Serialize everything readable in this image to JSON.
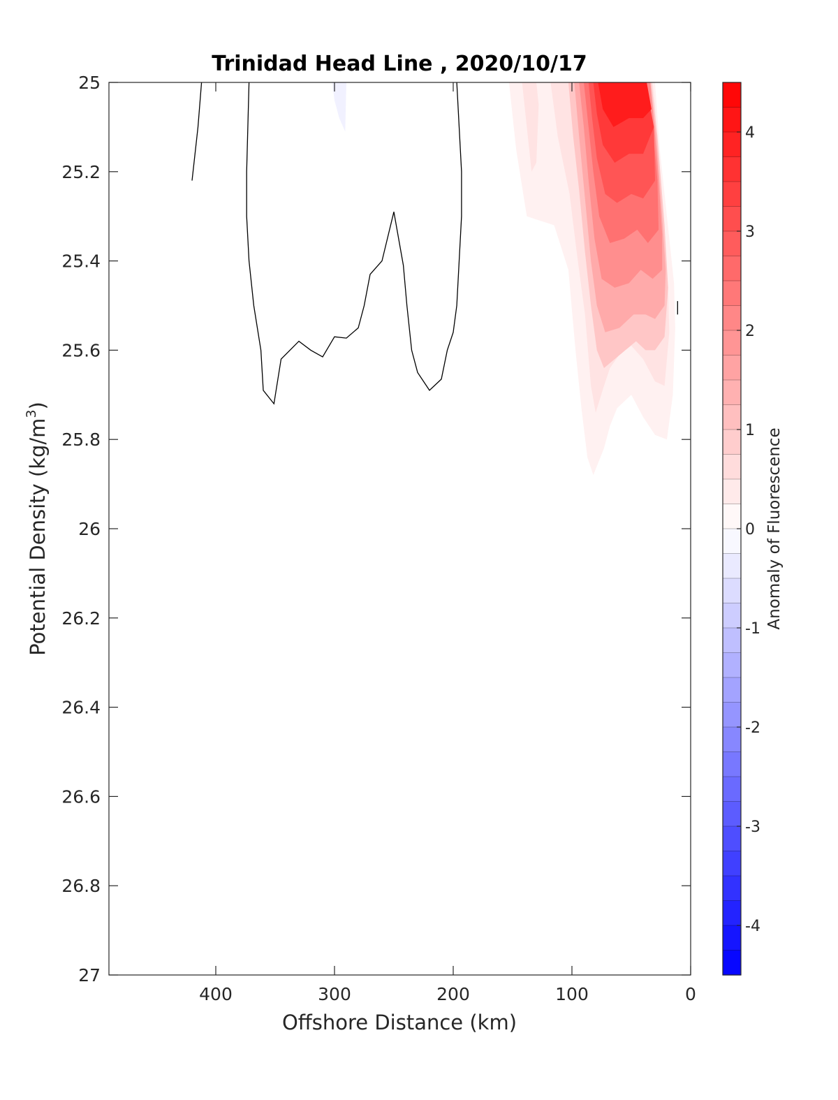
{
  "chart_data": {
    "type": "contour",
    "title": "Trinidad Head Line , 2020/10/17",
    "xlabel": "Offshore Distance (km)",
    "ylabel": "Potential Density (kg/m",
    "ylabel_sup": "3",
    "ylabel_close": ")",
    "xlim": [
      490,
      0
    ],
    "ylim": [
      25,
      27
    ],
    "x_ticks": [
      400,
      300,
      200,
      100,
      0
    ],
    "x_tick_labels": [
      "400",
      "300",
      "200",
      "100",
      "0"
    ],
    "y_ticks": [
      25,
      25.2,
      25.4,
      25.6,
      25.8,
      26,
      26.2,
      26.4,
      26.6,
      26.8,
      27
    ],
    "y_tick_labels": [
      "25",
      "25.2",
      "25.4",
      "25.6",
      "25.8",
      "26",
      "26.2",
      "26.4",
      "26.6",
      "26.8",
      "27"
    ],
    "colorbar": {
      "label": "Anomaly of Fluorescence",
      "range": [
        -4.5,
        4.5
      ],
      "ticks": [
        4,
        3,
        2,
        1,
        0,
        -1,
        -2,
        -3,
        -4
      ],
      "tick_labels": [
        "4",
        "3",
        "2",
        "1",
        "0",
        "-1",
        "-2",
        "-3",
        "-4"
      ],
      "level_step": 0.25,
      "colormap": "blue-white-red",
      "color_low": "#0000ff",
      "color_mid": "#ffffff",
      "color_high": "#ff0000"
    },
    "anomaly_fields": [
      {
        "level": 0.25,
        "points": [
          [
            153,
            25
          ],
          [
            147,
            25.15
          ],
          [
            138,
            25.3
          ],
          [
            115,
            25.32
          ],
          [
            103,
            25.42
          ],
          [
            97,
            25.6
          ],
          [
            92,
            25.73
          ],
          [
            87,
            25.84
          ],
          [
            82,
            25.88
          ],
          [
            73,
            25.82
          ],
          [
            68,
            25.77
          ],
          [
            62,
            25.73
          ],
          [
            50,
            25.7
          ],
          [
            40,
            25.75
          ],
          [
            30,
            25.79
          ],
          [
            20,
            25.8
          ],
          [
            15,
            25.7
          ],
          [
            13,
            25.55
          ],
          [
            14,
            25.45
          ],
          [
            18,
            25.35
          ],
          [
            22,
            25.25
          ],
          [
            26,
            25.15
          ],
          [
            30,
            25
          ],
          [
            153,
            25
          ]
        ]
      },
      {
        "level": 0.5,
        "points": [
          [
            118,
            25
          ],
          [
            112,
            25.12
          ],
          [
            102,
            25.25
          ],
          [
            96,
            25.38
          ],
          [
            89,
            25.52
          ],
          [
            84,
            25.68
          ],
          [
            80,
            25.74
          ],
          [
            73,
            25.68
          ],
          [
            68,
            25.64
          ],
          [
            60,
            25.61
          ],
          [
            50,
            25.59
          ],
          [
            40,
            25.62
          ],
          [
            30,
            25.67
          ],
          [
            22,
            25.68
          ],
          [
            18,
            25.56
          ],
          [
            19,
            25.46
          ],
          [
            22,
            25.35
          ],
          [
            26,
            25.2
          ],
          [
            30,
            25.05
          ],
          [
            32,
            25
          ],
          [
            118,
            25
          ]
        ]
      },
      {
        "level": 0.5,
        "points": [
          [
            142,
            25
          ],
          [
            138,
            25.1
          ],
          [
            134,
            25.2
          ],
          [
            130,
            25.18
          ],
          [
            128,
            25.05
          ],
          [
            130,
            25
          ],
          [
            142,
            25
          ]
        ]
      },
      {
        "level": 1,
        "points": [
          [
            103,
            25
          ],
          [
            99,
            25.12
          ],
          [
            94,
            25.24
          ],
          [
            89,
            25.38
          ],
          [
            84,
            25.5
          ],
          [
            79,
            25.6
          ],
          [
            73,
            25.64
          ],
          [
            64,
            25.62
          ],
          [
            55,
            25.6
          ],
          [
            46,
            25.58
          ],
          [
            38,
            25.6
          ],
          [
            30,
            25.6
          ],
          [
            22,
            25.57
          ],
          [
            19,
            25.46
          ],
          [
            22,
            25.32
          ],
          [
            28,
            25.12
          ],
          [
            33,
            25
          ],
          [
            103,
            25
          ]
        ]
      },
      {
        "level": 1.5,
        "points": [
          [
            98,
            25
          ],
          [
            94,
            25.12
          ],
          [
            89,
            25.26
          ],
          [
            84,
            25.4
          ],
          [
            79,
            25.5
          ],
          [
            72,
            25.56
          ],
          [
            60,
            25.55
          ],
          [
            48,
            25.52
          ],
          [
            38,
            25.52
          ],
          [
            30,
            25.53
          ],
          [
            22,
            25.5
          ],
          [
            21,
            25.42
          ],
          [
            24,
            25.3
          ],
          [
            29,
            25.12
          ],
          [
            34,
            25
          ],
          [
            98,
            25
          ]
        ]
      },
      {
        "level": 2,
        "points": [
          [
            94,
            25
          ],
          [
            90,
            25.1
          ],
          [
            86,
            25.22
          ],
          [
            81,
            25.35
          ],
          [
            75,
            25.44
          ],
          [
            64,
            25.46
          ],
          [
            52,
            25.45
          ],
          [
            42,
            25.42
          ],
          [
            32,
            25.44
          ],
          [
            24,
            25.42
          ],
          [
            24,
            25.34
          ],
          [
            28,
            25.18
          ],
          [
            34,
            25
          ],
          [
            94,
            25
          ]
        ]
      },
      {
        "level": 2.5,
        "points": [
          [
            90,
            25
          ],
          [
            86,
            25.1
          ],
          [
            82,
            25.2
          ],
          [
            77,
            25.3
          ],
          [
            68,
            25.36
          ],
          [
            56,
            25.35
          ],
          [
            45,
            25.33
          ],
          [
            36,
            25.36
          ],
          [
            27,
            25.33
          ],
          [
            28,
            25.22
          ],
          [
            32,
            25.1
          ],
          [
            37,
            25
          ],
          [
            90,
            25
          ]
        ]
      },
      {
        "level": 3,
        "points": [
          [
            86,
            25
          ],
          [
            83,
            25.08
          ],
          [
            79,
            25.17
          ],
          [
            72,
            25.25
          ],
          [
            62,
            25.27
          ],
          [
            50,
            25.25
          ],
          [
            40,
            25.26
          ],
          [
            30,
            25.22
          ],
          [
            31,
            25.1
          ],
          [
            38,
            25
          ],
          [
            86,
            25
          ]
        ]
      },
      {
        "level": 3.5,
        "points": [
          [
            82,
            25
          ],
          [
            79,
            25.07
          ],
          [
            74,
            25.14
          ],
          [
            64,
            25.18
          ],
          [
            52,
            25.16
          ],
          [
            40,
            25.16
          ],
          [
            31,
            25.1
          ],
          [
            38,
            25
          ],
          [
            82,
            25
          ]
        ]
      },
      {
        "level": 4,
        "points": [
          [
            78,
            25
          ],
          [
            74,
            25.06
          ],
          [
            65,
            25.1
          ],
          [
            52,
            25.08
          ],
          [
            40,
            25.08
          ],
          [
            33,
            25.06
          ],
          [
            37,
            25
          ],
          [
            78,
            25
          ]
        ]
      },
      {
        "level": -0.25,
        "points": [
          [
            302,
            25
          ],
          [
            300,
            25.04
          ],
          [
            296,
            25.08
          ],
          [
            291,
            25.11
          ],
          [
            290,
            25
          ],
          [
            302,
            25
          ]
        ]
      }
    ],
    "zero_contours": [
      [
        [
          420,
          25.22
        ],
        [
          415,
          25.1
        ],
        [
          412,
          25
        ]
      ],
      [
        [
          372,
          25
        ],
        [
          374,
          25.2
        ],
        [
          374,
          25.3
        ],
        [
          372,
          25.4
        ],
        [
          368,
          25.5
        ],
        [
          362,
          25.6
        ],
        [
          360,
          25.69
        ],
        [
          351,
          25.72
        ],
        [
          345,
          25.62
        ],
        [
          330,
          25.58
        ],
        [
          320,
          25.6
        ],
        [
          310,
          25.615
        ],
        [
          300,
          25.57
        ],
        [
          290,
          25.573
        ],
        [
          280,
          25.55
        ],
        [
          275,
          25.5
        ],
        [
          270,
          25.43
        ],
        [
          260,
          25.4
        ],
        [
          250,
          25.29
        ],
        [
          242,
          25.41
        ],
        [
          239,
          25.5
        ],
        [
          235,
          25.6
        ],
        [
          230,
          25.65
        ],
        [
          220,
          25.69
        ],
        [
          210,
          25.665
        ],
        [
          205,
          25.6
        ],
        [
          200,
          25.56
        ],
        [
          197,
          25.5
        ],
        [
          195,
          25.4
        ],
        [
          193,
          25.3
        ],
        [
          193,
          25.2
        ],
        [
          195,
          25.1
        ],
        [
          197,
          25
        ]
      ],
      [
        [
          11,
          25.49
        ],
        [
          11,
          25.52
        ]
      ]
    ]
  }
}
